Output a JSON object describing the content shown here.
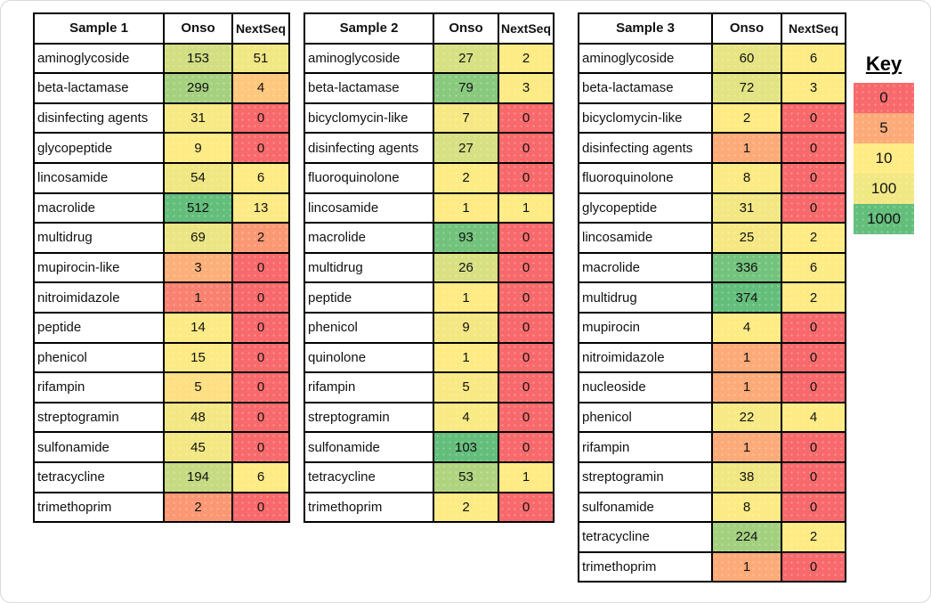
{
  "chart_data": {
    "type": "table",
    "subtype": "heatmap-tables",
    "legend_position": "right",
    "color_scale": {
      "min_color": "#F8696B",
      "mid_color": "#FFEB84",
      "max_color": "#63BE7B"
    },
    "tables": [
      {
        "title": "Sample 1",
        "columns": [
          "Onso",
          "NextSeq"
        ],
        "rows": [
          {
            "label": "aminoglycoside",
            "values": [
              153,
              51
            ],
            "colors": [
              "#D2DE81",
              "#F1E783"
            ]
          },
          {
            "label": "beta-lactamase",
            "values": [
              299,
              4
            ],
            "colors": [
              "#A5D17F",
              "#FDC87D"
            ]
          },
          {
            "label": "disinfecting agents",
            "values": [
              31,
              0
            ],
            "colors": [
              "#F7E984",
              "#F8696B"
            ]
          },
          {
            "label": "glycopeptide",
            "values": [
              9,
              0
            ],
            "colors": [
              "#FEEB84",
              "#F8696B"
            ]
          },
          {
            "label": "lincosamide",
            "values": [
              54,
              6
            ],
            "colors": [
              "#F0E783",
              "#FFEB84"
            ]
          },
          {
            "label": "macrolide",
            "values": [
              512,
              13
            ],
            "colors": [
              "#63BE7B",
              "#FDEA84"
            ]
          },
          {
            "label": "multidrug",
            "values": [
              69,
              2
            ],
            "colors": [
              "#EBE583",
              "#FB9874"
            ]
          },
          {
            "label": "mupirocin-like",
            "values": [
              3,
              0
            ],
            "colors": [
              "#FCB079",
              "#F8696B"
            ]
          },
          {
            "label": "nitroimidazole",
            "values": [
              1,
              0
            ],
            "colors": [
              "#F98170",
              "#F8696B"
            ]
          },
          {
            "label": "peptide",
            "values": [
              14,
              0
            ],
            "colors": [
              "#FCEA84",
              "#F8696B"
            ]
          },
          {
            "label": "phenicol",
            "values": [
              15,
              0
            ],
            "colors": [
              "#FCEA84",
              "#F8696B"
            ]
          },
          {
            "label": "rifampin",
            "values": [
              5,
              0
            ],
            "colors": [
              "#FEDF82",
              "#F8696B"
            ]
          },
          {
            "label": "streptogramin",
            "values": [
              48,
              0
            ],
            "colors": [
              "#F2E783",
              "#F8696B"
            ]
          },
          {
            "label": "sulfonamide",
            "values": [
              45,
              0
            ],
            "colors": [
              "#F3E783",
              "#F8696B"
            ]
          },
          {
            "label": "tetracycline",
            "values": [
              194,
              6
            ],
            "colors": [
              "#C5DA81",
              "#FFEB84"
            ]
          },
          {
            "label": "trimethoprim",
            "values": [
              2,
              0
            ],
            "colors": [
              "#FB9874",
              "#F8696B"
            ]
          }
        ]
      },
      {
        "title": "Sample 2",
        "columns": [
          "Onso",
          "NextSeq"
        ],
        "rows": [
          {
            "label": "aminoglycoside",
            "values": [
              27,
              2
            ],
            "colors": [
              "#D7E082",
              "#FDEB84"
            ]
          },
          {
            "label": "beta-lactamase",
            "values": [
              79,
              3
            ],
            "colors": [
              "#88C97D",
              "#FCEA84"
            ]
          },
          {
            "label": "bicyclomycin-like",
            "values": [
              7,
              0
            ],
            "colors": [
              "#F6E883",
              "#F8696B"
            ]
          },
          {
            "label": "disinfecting agents",
            "values": [
              27,
              0
            ],
            "colors": [
              "#D7E082",
              "#F8696B"
            ]
          },
          {
            "label": "fluoroquinolone",
            "values": [
              2,
              0
            ],
            "colors": [
              "#FDEB84",
              "#F8696B"
            ]
          },
          {
            "label": "lincosamide",
            "values": [
              1,
              1
            ],
            "colors": [
              "#FFEB84",
              "#FFEB84"
            ]
          },
          {
            "label": "macrolide",
            "values": [
              93,
              0
            ],
            "colors": [
              "#72C27C",
              "#F8696B"
            ]
          },
          {
            "label": "multidrug",
            "values": [
              26,
              0
            ],
            "colors": [
              "#D9E082",
              "#F8696B"
            ]
          },
          {
            "label": "peptide",
            "values": [
              1,
              0
            ],
            "colors": [
              "#FFEB84",
              "#F8696B"
            ]
          },
          {
            "label": "phenicol",
            "values": [
              9,
              0
            ],
            "colors": [
              "#F3E783",
              "#F8696B"
            ]
          },
          {
            "label": "quinolone",
            "values": [
              1,
              0
            ],
            "colors": [
              "#FFEB84",
              "#F8696B"
            ]
          },
          {
            "label": "rifampin",
            "values": [
              5,
              0
            ],
            "colors": [
              "#F9E984",
              "#F8696B"
            ]
          },
          {
            "label": "streptogramin",
            "values": [
              4,
              0
            ],
            "colors": [
              "#FAEA84",
              "#F8696B"
            ]
          },
          {
            "label": "sulfonamide",
            "values": [
              103,
              0
            ],
            "colors": [
              "#63BE7B",
              "#F8696B"
            ]
          },
          {
            "label": "tetracycline",
            "values": [
              53,
              1
            ],
            "colors": [
              "#AFD47F",
              "#FFEB84"
            ]
          },
          {
            "label": "trimethoprim",
            "values": [
              2,
              0
            ],
            "colors": [
              "#FDEB84",
              "#F8696B"
            ]
          }
        ]
      },
      {
        "title": "Sample 3",
        "columns": [
          "Onso",
          "NextSeq"
        ],
        "rows": [
          {
            "label": "aminoglycoside",
            "values": [
              60,
              6
            ],
            "colors": [
              "#E7E483",
              "#FDEB84"
            ]
          },
          {
            "label": "beta-lactamase",
            "values": [
              72,
              3
            ],
            "colors": [
              "#E2E382",
              "#FFEB84"
            ]
          },
          {
            "label": "bicyclomycin-like",
            "values": [
              2,
              0
            ],
            "colors": [
              "#FFEB84",
              "#F8696B"
            ]
          },
          {
            "label": "disinfecting agents",
            "values": [
              1,
              0
            ],
            "colors": [
              "#FCAA78",
              "#F8696B"
            ]
          },
          {
            "label": "fluoroquinolone",
            "values": [
              8,
              0
            ],
            "colors": [
              "#FCEA84",
              "#F8696B"
            ]
          },
          {
            "label": "glycopeptide",
            "values": [
              31,
              0
            ],
            "colors": [
              "#F3E783",
              "#F8696B"
            ]
          },
          {
            "label": "lincosamide",
            "values": [
              25,
              2
            ],
            "colors": [
              "#F5E883",
              "#FFEB84"
            ]
          },
          {
            "label": "macrolide",
            "values": [
              336,
              6
            ],
            "colors": [
              "#73C37C",
              "#FDEB84"
            ]
          },
          {
            "label": "multidrug",
            "values": [
              374,
              2
            ],
            "colors": [
              "#63BE7B",
              "#FFEB84"
            ]
          },
          {
            "label": "mupirocin",
            "values": [
              4,
              0
            ],
            "colors": [
              "#FEEB84",
              "#F8696B"
            ]
          },
          {
            "label": "nitroimidazole",
            "values": [
              1,
              0
            ],
            "colors": [
              "#FCAA78",
              "#F8696B"
            ]
          },
          {
            "label": "nucleoside",
            "values": [
              1,
              0
            ],
            "colors": [
              "#FCAA78",
              "#F8696B"
            ]
          },
          {
            "label": "phenicol",
            "values": [
              22,
              4
            ],
            "colors": [
              "#F7E984",
              "#FEEB84"
            ]
          },
          {
            "label": "rifampin",
            "values": [
              1,
              0
            ],
            "colors": [
              "#FCAA78",
              "#F8696B"
            ]
          },
          {
            "label": "streptogramin",
            "values": [
              38,
              0
            ],
            "colors": [
              "#F0E783",
              "#F8696B"
            ]
          },
          {
            "label": "sulfonamide",
            "values": [
              8,
              0
            ],
            "colors": [
              "#FCEA84",
              "#F8696B"
            ]
          },
          {
            "label": "tetracycline",
            "values": [
              224,
              2
            ],
            "colors": [
              "#A2D07F",
              "#FFEB84"
            ]
          },
          {
            "label": "trimethoprim",
            "values": [
              1,
              0
            ],
            "colors": [
              "#FCAA78",
              "#F8696B"
            ]
          }
        ]
      }
    ],
    "key": {
      "title": "Key",
      "entries": [
        {
          "value": "0",
          "color": "#F8696B"
        },
        {
          "value": "5",
          "color": "#FCAA78"
        },
        {
          "value": "10",
          "color": "#FFEB84"
        },
        {
          "value": "100",
          "color": "#F1E783"
        },
        {
          "value": "1000",
          "color": "#63BE7B"
        }
      ]
    }
  }
}
